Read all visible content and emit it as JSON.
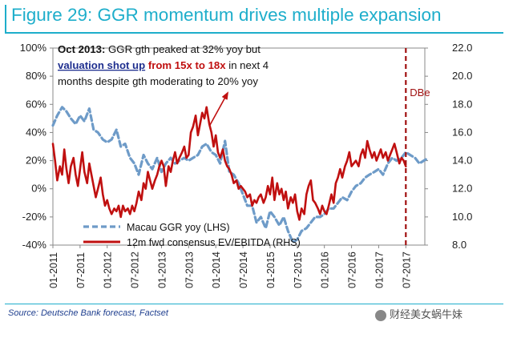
{
  "title": "Figure 29: GGR momentum drives multiple expansion",
  "source": "Source: Deutsche Bank forecast, Factset",
  "watermark": "财经美女蜗牛妹",
  "annotation": {
    "line1_bold": "Oct 2013:",
    "line1_rest": " GGR gth peaked at 32% yoy but",
    "line2_blue": "valuation shot up",
    "line2_red": " from 15x to 18x",
    "line2_rest": " in next 4",
    "line3": "months despite gth moderating to 20% yoy"
  },
  "dbe_label": "DBe",
  "colors": {
    "title": "#1eaecb",
    "ggr": "#6e9bc8",
    "ev": "#c01010",
    "dbe": "#a01010",
    "annotation_blue": "#1f2f8f",
    "annotation_red": "#c01010"
  },
  "chart_data": {
    "type": "line",
    "title": "Figure 29: GGR momentum drives multiple expansion",
    "x_ticks": [
      "01-2011",
      "07-2011",
      "01-2012",
      "07-2012",
      "01-2013",
      "07-2013",
      "01-2014",
      "07-2014",
      "01-2015",
      "07-2015",
      "01-2016",
      "07-2016",
      "01-2017",
      "07-2017"
    ],
    "y_left": {
      "ticks": [
        "100%",
        "80%",
        "60%",
        "40%",
        "20%",
        "0%",
        "-20%",
        "-40%"
      ],
      "min": -40,
      "max": 100
    },
    "y_right": {
      "ticks": [
        "22.0",
        "20.0",
        "18.0",
        "16.0",
        "14.0",
        "12.0",
        "10.0",
        "8.0"
      ],
      "min": 8,
      "max": 22
    },
    "forecast_marker": {
      "x": 2017.5,
      "label": "DBe"
    },
    "legend": [
      "Macau GGR yoy (LHS)",
      "12m fwd consensus EV/EBITDA (RHS)"
    ],
    "legend_position": "bottom-left",
    "series": [
      {
        "name": "Macau GGR yoy (LHS)",
        "axis": "left",
        "style": "dashed",
        "x": [
          2011.0,
          2011.08,
          2011.17,
          2011.25,
          2011.33,
          2011.42,
          2011.5,
          2011.58,
          2011.67,
          2011.75,
          2011.83,
          2011.92,
          2012.0,
          2012.08,
          2012.17,
          2012.25,
          2012.33,
          2012.42,
          2012.5,
          2012.58,
          2012.67,
          2012.75,
          2012.83,
          2012.92,
          2013.0,
          2013.08,
          2013.17,
          2013.25,
          2013.33,
          2013.42,
          2013.5,
          2013.58,
          2013.67,
          2013.75,
          2013.83,
          2013.92,
          2014.0,
          2014.08,
          2014.17,
          2014.25,
          2014.33,
          2014.42,
          2014.5,
          2014.58,
          2014.67,
          2014.75,
          2014.83,
          2014.92,
          2015.0,
          2015.08,
          2015.17,
          2015.25,
          2015.33,
          2015.42,
          2015.5,
          2015.58,
          2015.67,
          2015.75,
          2015.83,
          2015.92,
          2016.0,
          2016.08,
          2016.17,
          2016.25,
          2016.33,
          2016.42,
          2016.5,
          2016.58,
          2016.67,
          2016.75,
          2016.83,
          2016.92,
          2017.0,
          2017.08,
          2017.17,
          2017.25,
          2017.33,
          2017.42,
          2017.5,
          2017.58,
          2017.67,
          2017.75,
          2017.83,
          2017.92
        ],
        "values": [
          45,
          52,
          58,
          55,
          50,
          46,
          52,
          48,
          57,
          42,
          40,
          35,
          33,
          35,
          42,
          30,
          32,
          22,
          18,
          10,
          24,
          18,
          14,
          22,
          12,
          18,
          22,
          18,
          20,
          22,
          20,
          22,
          24,
          30,
          32,
          26,
          24,
          18,
          34,
          12,
          10,
          4,
          -4,
          -12,
          -12,
          -24,
          -20,
          -28,
          -16,
          -20,
          -26,
          -20,
          -30,
          -38,
          -36,
          -30,
          -28,
          -24,
          -20,
          -20,
          -18,
          -14,
          -14,
          -10,
          -6,
          -8,
          -2,
          2,
          4,
          8,
          10,
          12,
          14,
          10,
          18,
          22,
          20,
          22,
          26,
          24,
          22,
          18,
          20,
          22
        ]
      },
      {
        "name": "12m fwd consensus EV/EBITDA (RHS)",
        "axis": "right",
        "style": "solid",
        "x": [
          2011.0,
          2011.04,
          2011.08,
          2011.13,
          2011.17,
          2011.21,
          2011.25,
          2011.29,
          2011.33,
          2011.38,
          2011.42,
          2011.46,
          2011.5,
          2011.54,
          2011.58,
          2011.63,
          2011.67,
          2011.71,
          2011.75,
          2011.79,
          2011.83,
          2011.88,
          2011.92,
          2011.96,
          2012.0,
          2012.04,
          2012.08,
          2012.13,
          2012.17,
          2012.21,
          2012.25,
          2012.29,
          2012.33,
          2012.38,
          2012.42,
          2012.46,
          2012.5,
          2012.54,
          2012.58,
          2012.63,
          2012.67,
          2012.71,
          2012.75,
          2012.79,
          2012.83,
          2012.88,
          2012.92,
          2012.96,
          2013.0,
          2013.04,
          2013.08,
          2013.13,
          2013.17,
          2013.21,
          2013.25,
          2013.29,
          2013.33,
          2013.38,
          2013.42,
          2013.46,
          2013.5,
          2013.54,
          2013.58,
          2013.63,
          2013.67,
          2013.71,
          2013.75,
          2013.79,
          2013.83,
          2013.88,
          2013.92,
          2013.96,
          2014.0,
          2014.04,
          2014.08,
          2014.13,
          2014.17,
          2014.21,
          2014.25,
          2014.29,
          2014.33,
          2014.38,
          2014.42,
          2014.46,
          2014.5,
          2014.54,
          2014.58,
          2014.63,
          2014.67,
          2014.71,
          2014.75,
          2014.79,
          2014.83,
          2014.88,
          2014.92,
          2014.96,
          2015.0,
          2015.04,
          2015.08,
          2015.13,
          2015.17,
          2015.21,
          2015.25,
          2015.29,
          2015.33,
          2015.38,
          2015.42,
          2015.46,
          2015.5,
          2015.54,
          2015.58,
          2015.63,
          2015.67,
          2015.71,
          2015.75,
          2015.79,
          2015.83,
          2015.88,
          2015.92,
          2015.96,
          2016.0,
          2016.04,
          2016.08,
          2016.13,
          2016.17,
          2016.21,
          2016.25,
          2016.29,
          2016.33,
          2016.38,
          2016.42,
          2016.46,
          2016.5,
          2016.54,
          2016.58,
          2016.63,
          2016.67,
          2016.71,
          2016.75,
          2016.79,
          2016.83,
          2016.88,
          2016.92,
          2016.96,
          2017.0,
          2017.04,
          2017.08,
          2017.13,
          2017.17,
          2017.21,
          2017.25,
          2017.29,
          2017.33,
          2017.38,
          2017.42,
          2017.46,
          2017.5
        ],
        "values": [
          15.2,
          14.0,
          12.6,
          13.6,
          13.0,
          14.8,
          13.4,
          12.4,
          13.6,
          14.2,
          13.0,
          12.2,
          13.4,
          14.6,
          13.2,
          12.4,
          13.8,
          13.0,
          12.2,
          11.4,
          12.0,
          12.8,
          11.6,
          10.8,
          11.2,
          10.6,
          10.2,
          10.6,
          10.4,
          10.8,
          10.0,
          10.8,
          10.4,
          10.6,
          10.2,
          10.8,
          10.4,
          11.0,
          11.8,
          11.2,
          12.4,
          12.0,
          13.2,
          12.6,
          12.0,
          12.6,
          13.0,
          13.6,
          14.0,
          13.6,
          12.2,
          13.6,
          13.2,
          14.0,
          14.6,
          13.8,
          14.2,
          14.6,
          15.0,
          14.2,
          14.4,
          16.0,
          16.4,
          17.2,
          15.8,
          16.6,
          17.4,
          17.0,
          17.8,
          16.6,
          16.0,
          15.0,
          15.8,
          14.6,
          14.2,
          14.8,
          14.0,
          13.6,
          13.4,
          13.0,
          12.4,
          12.6,
          12.0,
          12.2,
          12.0,
          11.8,
          11.4,
          11.6,
          10.8,
          11.2,
          11.0,
          11.4,
          11.6,
          11.0,
          11.4,
          12.2,
          11.6,
          12.8,
          11.2,
          12.4,
          11.6,
          12.0,
          11.2,
          11.8,
          10.6,
          11.4,
          11.0,
          11.6,
          10.4,
          9.8,
          10.6,
          10.2,
          11.6,
          12.2,
          12.6,
          11.2,
          11.0,
          10.6,
          10.2,
          10.8,
          10.4,
          10.2,
          10.8,
          11.6,
          11.0,
          12.4,
          12.8,
          13.4,
          12.8,
          13.6,
          14.0,
          14.6,
          13.6,
          13.8,
          14.0,
          13.6,
          14.4,
          14.8,
          14.2,
          15.4,
          14.8,
          14.2,
          14.6,
          14.0,
          14.4,
          14.8,
          14.2,
          14.6,
          14.0,
          14.4,
          14.8,
          15.2,
          14.6,
          13.8,
          14.2,
          14.0,
          13.6
        ]
      }
    ]
  }
}
